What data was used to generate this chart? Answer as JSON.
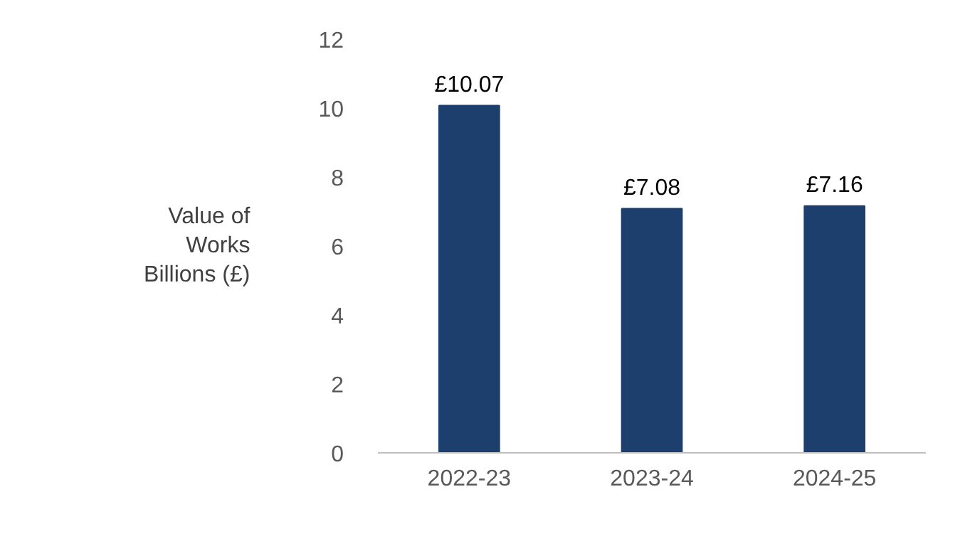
{
  "chart_data": {
    "type": "bar",
    "ylabel": "Value of\nWorks\nBillions (£)",
    "categories": [
      "2022-23",
      "2023-24",
      "2024-25"
    ],
    "values": [
      10.07,
      7.08,
      7.16
    ],
    "value_labels": [
      "£10.07",
      "£7.08",
      "£7.16"
    ],
    "color": "#1c3f6e",
    "ylim": [
      0,
      12
    ],
    "yticks": [
      0,
      2,
      4,
      6,
      8,
      10,
      12
    ],
    "grid": false
  }
}
